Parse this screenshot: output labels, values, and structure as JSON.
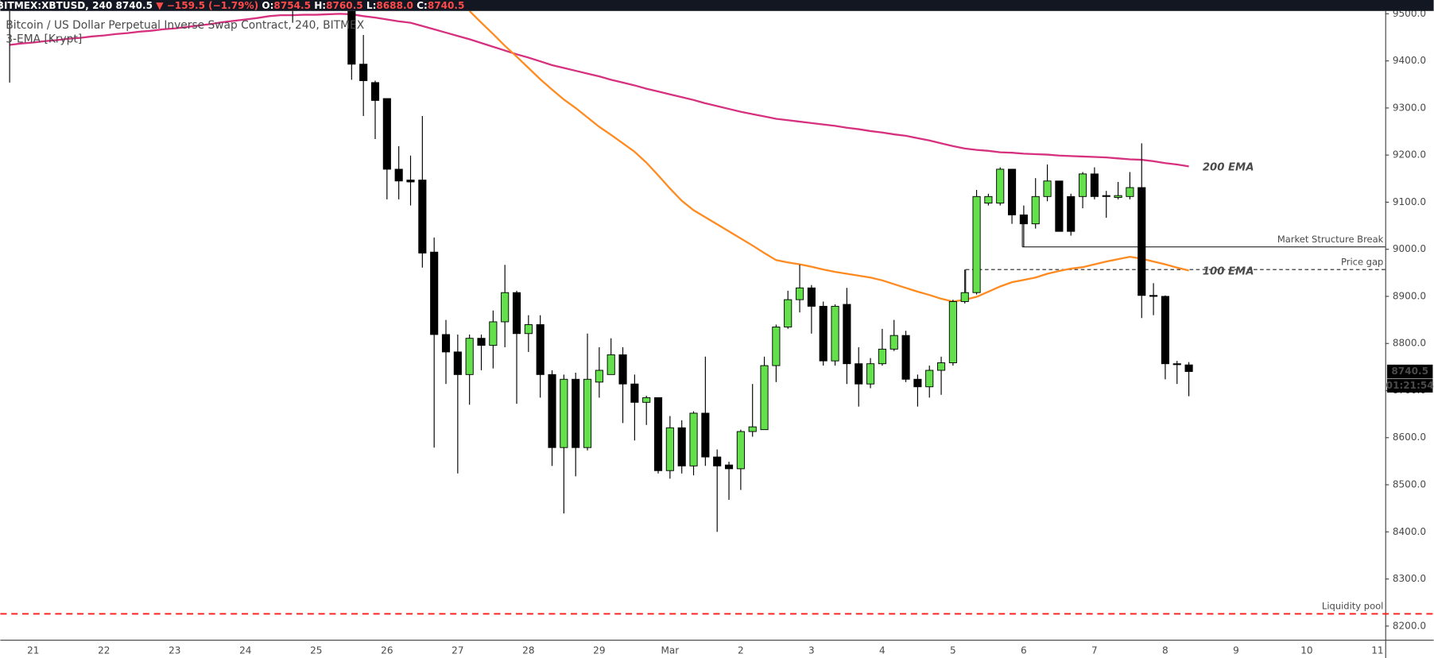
{
  "header": {
    "symbol": "BITMEX:XBTUSD, 240",
    "price": "8740.5",
    "change": "▼ −159.5 (−1.79%)",
    "ohlc": [
      {
        "key": "O:",
        "value": "8754.5"
      },
      {
        "key": "H:",
        "value": "8760.5"
      },
      {
        "key": "L:",
        "value": "8688.0"
      },
      {
        "key": "C:",
        "value": "8740.5"
      }
    ]
  },
  "legend": {
    "instrument": "Bitcoin / US Dollar Perpetual Inverse Swap Contract, 240, BITMEX",
    "indicator": "3-EMA [Krypt]"
  },
  "chart_data": {
    "type": "candlestick",
    "up_color": "#63e04b",
    "down_color": "#000000",
    "grid": false,
    "categories": [
      null,
      null,
      "21",
      null,
      null,
      null,
      null,
      null,
      "22",
      null,
      null,
      null,
      null,
      null,
      "23",
      null,
      null,
      null,
      null,
      null,
      "24",
      null,
      null,
      null,
      null,
      null,
      "25",
      null,
      null,
      null,
      null,
      null,
      "26",
      null,
      null,
      null,
      null,
      null,
      "27",
      null,
      null,
      null,
      null,
      null,
      "28",
      null,
      null,
      null,
      null,
      null,
      "29",
      null,
      null,
      null,
      null,
      null,
      "Mar",
      null,
      null,
      null,
      null,
      null,
      "2",
      null,
      null,
      null,
      null,
      null,
      "3",
      null,
      null,
      null,
      null,
      null,
      "4",
      null,
      null,
      null,
      null,
      null,
      "5",
      null,
      null,
      null,
      null,
      null,
      "6",
      null,
      null,
      null,
      null,
      null,
      "7",
      null,
      null,
      null,
      null,
      null,
      "8",
      null,
      null,
      null,
      null,
      null,
      "9",
      null,
      null,
      null,
      null,
      null,
      "10",
      null,
      null,
      null,
      null,
      null,
      "11"
    ],
    "open": [
      9520,
      null,
      null,
      null,
      null,
      null,
      null,
      null,
      null,
      null,
      null,
      null,
      null,
      null,
      null,
      null,
      null,
      null,
      null,
      null,
      null,
      null,
      null,
      null,
      9530,
      null,
      null,
      null,
      null,
      9520,
      9393,
      9354,
      9320,
      9170,
      9147,
      9147,
      8994,
      8819,
      8782,
      8734,
      8811,
      8796,
      8846,
      8908,
      8821,
      8840,
      8734,
      8579,
      8724,
      8579,
      8718,
      8734,
      8776,
      8714,
      8675,
      8685,
      8530,
      8621,
      8540,
      8652,
      8559,
      8542,
      8534,
      8613,
      8617,
      8753,
      8835,
      8893,
      8918,
      8879,
      8763,
      8883,
      8757,
      8714,
      8757,
      8788,
      8817,
      8724,
      8708,
      8743,
      8759,
      8889,
      8908,
      9098,
      9098,
      9170,
      9073,
      9054,
      9112,
      9145,
      9112,
      9112,
      9160,
      9114,
      9110,
      9112,
      9131,
      8902,
      8900,
      8757,
      8754.5,
      null,
      null,
      null,
      null,
      null,
      null,
      null,
      null,
      null,
      null,
      null,
      null,
      null,
      null,
      null,
      null
    ],
    "high": [
      9560,
      null,
      null,
      null,
      null,
      null,
      null,
      null,
      null,
      null,
      null,
      null,
      null,
      null,
      null,
      null,
      null,
      null,
      null,
      null,
      null,
      null,
      null,
      null,
      9560,
      null,
      null,
      null,
      null,
      9540,
      9455,
      9358,
      9320,
      9219,
      9199,
      9283,
      9025,
      8850,
      8819,
      8819,
      8819,
      8870,
      8967,
      8912,
      8860,
      8860,
      8743,
      8734,
      8738,
      8821,
      8792,
      8811,
      8792,
      8734,
      8689,
      8685,
      8646,
      8637,
      8656,
      8772,
      8575,
      8549,
      8617,
      8714,
      8772,
      8840,
      8912,
      8967,
      8924,
      8889,
      8883,
      8918,
      8792,
      8769,
      8831,
      8850,
      8827,
      8734,
      8753,
      8772,
      8893,
      8957,
      9126,
      9118,
      9174,
      9170,
      9093,
      9151,
      9180,
      9145,
      9118,
      9164,
      9174,
      9124,
      9143,
      9164,
      9225,
      8928,
      8902,
      8763,
      8760.5,
      null,
      null,
      null,
      null,
      null,
      null,
      null,
      null,
      null,
      null,
      null,
      null,
      null,
      null,
      null,
      null
    ],
    "low": [
      9354,
      null,
      null,
      null,
      null,
      null,
      null,
      null,
      null,
      null,
      null,
      null,
      null,
      null,
      null,
      null,
      null,
      null,
      null,
      null,
      null,
      null,
      null,
      null,
      9481,
      null,
      null,
      null,
      null,
      9360,
      9283,
      9234,
      9106,
      9106,
      9093,
      8961,
      8579,
      8714,
      8524,
      8670,
      8743,
      8747,
      8792,
      8672,
      8782,
      8685,
      8540,
      8439,
      8518,
      8573,
      8685,
      8734,
      8631,
      8594,
      8627,
      8524,
      8513,
      8524,
      8520,
      8540,
      8400,
      8468,
      8489,
      8602,
      8617,
      8718,
      8831,
      8866,
      8821,
      8753,
      8753,
      8714,
      8666,
      8705,
      8753,
      8784,
      8718,
      8666,
      8685,
      8691,
      8753,
      8885,
      8904,
      9093,
      9093,
      9054,
      9005,
      9044,
      9102,
      9038,
      9029,
      9087,
      9106,
      9067,
      9106,
      9106,
      8854,
      8860,
      8724,
      8714,
      8688,
      null,
      null,
      null,
      null,
      null,
      null,
      null,
      null,
      null,
      null,
      null,
      null,
      null,
      null,
      null,
      null
    ],
    "close": [
      9510,
      null,
      null,
      null,
      null,
      null,
      null,
      null,
      null,
      null,
      null,
      null,
      null,
      null,
      null,
      null,
      null,
      null,
      null,
      null,
      null,
      null,
      null,
      null,
      9510,
      null,
      null,
      null,
      null,
      9393,
      9358,
      9316,
      9170,
      9145,
      9143,
      8992,
      8819,
      8782,
      8734,
      8811,
      8796,
      8846,
      8908,
      8821,
      8840,
      8734,
      8579,
      8724,
      8579,
      8724,
      8743,
      8776,
      8714,
      8675,
      8685,
      8530,
      8621,
      8540,
      8652,
      8559,
      8540,
      8534,
      8613,
      8623,
      8753,
      8835,
      8893,
      8918,
      8879,
      8763,
      8879,
      8757,
      8714,
      8757,
      8788,
      8817,
      8724,
      8708,
      8743,
      8759,
      8889,
      8908,
      9112,
      9112,
      9170,
      9073,
      9054,
      9112,
      9145,
      9038,
      9038,
      9160,
      9112,
      9112,
      9114,
      9131,
      8902,
      8900,
      8757,
      8755,
      8740.5,
      null,
      null,
      null,
      null,
      null,
      null,
      null,
      null,
      null,
      null,
      null,
      null,
      null,
      null,
      null,
      null
    ],
    "series": [
      {
        "name": "200 EMA",
        "color": "#d6307f",
        "values": [
          9434,
          9437,
          9439,
          9442,
          9444,
          9447,
          9449,
          9452,
          9454,
          9457,
          9459,
          9462,
          9464,
          9467,
          9469,
          9472,
          9475,
          9478,
          9482,
          9485,
          9488,
          9491,
          9495,
          9497,
          9497,
          9498,
          9498,
          9499,
          9500,
          9499,
          9495,
          9492,
          9488,
          9484,
          9481,
          9474,
          9467,
          9460,
          9453,
          9446,
          9438,
          9430,
          9422,
          9414,
          9407,
          9399,
          9391,
          9385,
          9379,
          9373,
          9367,
          9360,
          9354,
          9348,
          9341,
          9335,
          9329,
          9323,
          9317,
          9310,
          9304,
          9298,
          9292,
          9287,
          9282,
          9277,
          9274,
          9271,
          9268,
          9265,
          9262,
          9258,
          9255,
          9251,
          9248,
          9244,
          9241,
          9236,
          9231,
          9225,
          9219,
          9214,
          9211,
          9209,
          9206,
          9205,
          9203,
          9202,
          9201,
          9199,
          9198,
          9197,
          9196,
          9195,
          9193,
          9191,
          9190,
          9187,
          9183,
          9180,
          9176,
          null,
          null,
          null,
          null,
          null,
          null,
          null,
          null,
          null,
          null,
          null,
          null,
          null,
          null,
          null,
          null
        ]
      },
      {
        "name": "100 EMA",
        "color": "#ff8a1f",
        "values": [
          null,
          null,
          null,
          null,
          null,
          null,
          null,
          null,
          null,
          null,
          null,
          null,
          null,
          null,
          null,
          null,
          null,
          null,
          null,
          null,
          null,
          null,
          null,
          null,
          null,
          null,
          null,
          null,
          null,
          null,
          null,
          null,
          null,
          null,
          null,
          null,
          null,
          null,
          null,
          9506,
          9481,
          9457,
          9432,
          9409,
          9385,
          9361,
          9339,
          9318,
          9300,
          9280,
          9260,
          9243,
          9225,
          9207,
          9184,
          9157,
          9129,
          9103,
          9083,
          9068,
          9053,
          9038,
          9023,
          9008,
          8992,
          8977,
          8972,
          8968,
          8963,
          8957,
          8952,
          8948,
          8944,
          8940,
          8934,
          8926,
          8918,
          8910,
          8903,
          8895,
          8889,
          8893,
          8899,
          8910,
          8921,
          8930,
          8935,
          8940,
          8948,
          8954,
          8959,
          8962,
          8968,
          8974,
          8979,
          8984,
          8980,
          8974,
          8968,
          8961,
          8955,
          null,
          null,
          null,
          null,
          null,
          null,
          null,
          null,
          null,
          null,
          null,
          null,
          null,
          null,
          null,
          null
        ]
      }
    ],
    "levels": [
      {
        "label": "Market Structure Break",
        "value": 9005,
        "style": "solid",
        "color": "#222222"
      },
      {
        "label": "Price gap",
        "value": 8957,
        "style": "dashed",
        "color": "#222222"
      },
      {
        "label": "Liquidity pool",
        "value": 8226,
        "style": "dashed",
        "color": "#ff1a1a"
      }
    ],
    "last_price": 8740.5,
    "countdown": "01:21:54",
    "ylim": [
      8171,
      9506
    ],
    "yticks": [
      {
        "value": 8200,
        "label": "8200.0"
      },
      {
        "value": 8300,
        "label": "8300.0"
      },
      {
        "value": 8400,
        "label": "8400.0"
      },
      {
        "value": 8500,
        "label": "8500.0"
      },
      {
        "value": 8600,
        "label": "8600.0"
      },
      {
        "value": 8700,
        "label": "8700.0"
      },
      {
        "value": 8800,
        "label": "8800.0"
      },
      {
        "value": 8900,
        "label": "8900.0"
      },
      {
        "value": 9000,
        "label": "9000.0"
      },
      {
        "value": 9100,
        "label": "9100.0"
      },
      {
        "value": 9200,
        "label": "9200.0"
      },
      {
        "value": 9300,
        "label": "9300.0"
      },
      {
        "value": 9400,
        "label": "9400.0"
      },
      {
        "value": 9500,
        "label": "9500.0"
      }
    ]
  }
}
